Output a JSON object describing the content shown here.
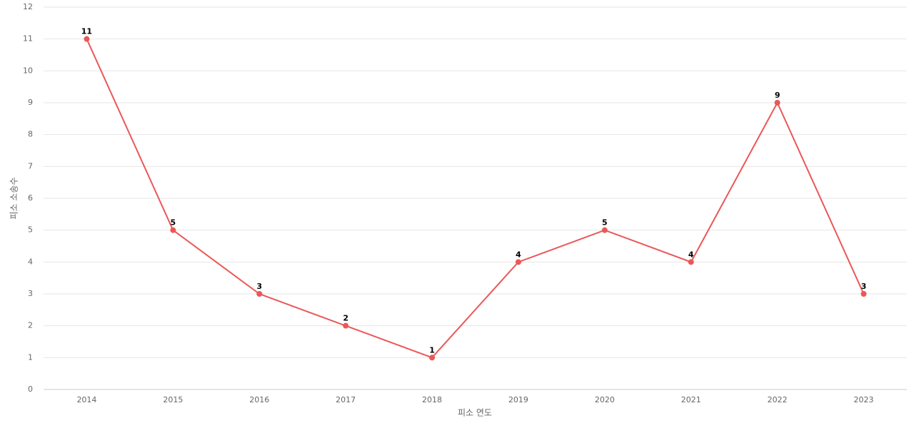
{
  "chart_data": {
    "type": "line",
    "x_label": "피소 연도",
    "y_label": "피소 소송수",
    "categories": [
      "2014",
      "2015",
      "2016",
      "2017",
      "2018",
      "2019",
      "2020",
      "2021",
      "2022",
      "2023"
    ],
    "values": [
      11,
      5,
      3,
      2,
      1,
      4,
      5,
      4,
      9,
      3
    ],
    "color": "#eb5757",
    "ylim": [
      0,
      12
    ],
    "yticks": [
      0,
      1,
      2,
      3,
      4,
      5,
      6,
      7,
      8,
      9,
      10,
      11,
      12
    ],
    "grid": true
  }
}
